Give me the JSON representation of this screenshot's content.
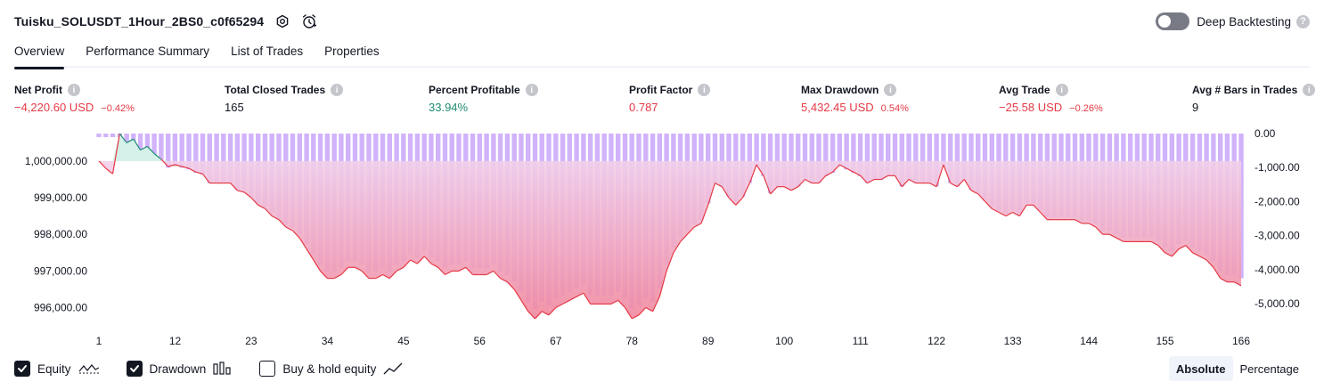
{
  "header": {
    "strategy_name": "Tuisku_SOLUSDT_1Hour_2BS0_c0f65294",
    "deep_backtesting_label": "Deep Backtesting"
  },
  "tabs": [
    {
      "label": "Overview",
      "active": true
    },
    {
      "label": "Performance Summary",
      "active": false
    },
    {
      "label": "List of Trades",
      "active": false
    },
    {
      "label": "Properties",
      "active": false
    }
  ],
  "metrics": {
    "net_profit": {
      "label": "Net Profit",
      "value": "−4,220.60 USD",
      "pct": "−0.42%"
    },
    "total_closed_trades": {
      "label": "Total Closed Trades",
      "value": "165"
    },
    "percent_profitable": {
      "label": "Percent Profitable",
      "value": "33.94%"
    },
    "profit_factor": {
      "label": "Profit Factor",
      "value": "0.787"
    },
    "max_drawdown": {
      "label": "Max Drawdown",
      "value": "5,432.45 USD",
      "pct": "0.54%"
    },
    "avg_trade": {
      "label": "Avg Trade",
      "value": "−25.58 USD",
      "pct": "−0.26%"
    },
    "avg_bars": {
      "label": "Avg # Bars in Trades",
      "value": "9"
    }
  },
  "legend": {
    "equity_label": "Equity",
    "drawdown_label": "Drawdown",
    "buy_hold_label": "Buy & hold equity",
    "equity_checked": true,
    "drawdown_checked": true,
    "buy_hold_checked": false
  },
  "mode": {
    "absolute_label": "Absolute",
    "percentage_label": "Percentage",
    "active": "absolute"
  },
  "colors": {
    "loss_red": "#e53945",
    "profit_green": "#1e8c74",
    "drawdown_bar": "#d1b3fb",
    "area_top": "#f0d4f6",
    "area_bottom": "#f0879e",
    "profit_area": "#d4f0e8"
  },
  "chart_data": {
    "type": "area",
    "x_ticks": [
      "1",
      "12",
      "23",
      "34",
      "45",
      "56",
      "67",
      "78",
      "89",
      "100",
      "111",
      "122",
      "133",
      "144",
      "155",
      "166"
    ],
    "x_range": [
      1,
      166
    ],
    "left_ticks": [
      "1,000,000.00",
      "999,000.00",
      "998,000.00",
      "997,000.00",
      "996,000.00"
    ],
    "left_tick_values": [
      1000000,
      999000,
      998000,
      997000,
      996000
    ],
    "left_range": [
      995600,
      1000750
    ],
    "right_ticks": [
      "0.00",
      "-1,000.00",
      "-2,000.00",
      "-3,000.00",
      "-4,000.00",
      "-5,000.00"
    ],
    "right_tick_values": [
      0,
      -1000,
      -2000,
      -3000,
      -4000,
      -5000
    ],
    "right_range": [
      -5550,
      0
    ],
    "series": [
      {
        "name": "Equity",
        "values": [
          1000000,
          999800,
          999650,
          1000750,
          1000500,
          1000600,
          1000300,
          1000400,
          1000200,
          1000050,
          999850,
          999900,
          999850,
          999800,
          999700,
          999650,
          999400,
          999400,
          999400,
          999400,
          999200,
          999150,
          999000,
          998800,
          998700,
          998500,
          998400,
          998200,
          998100,
          997900,
          997600,
          997300,
          997000,
          996800,
          996800,
          996900,
          997100,
          997100,
          997000,
          996800,
          996800,
          996900,
          996800,
          997000,
          997100,
          997300,
          997200,
          997400,
          997200,
          997100,
          996900,
          997000,
          997000,
          997100,
          996900,
          996900,
          996900,
          997000,
          996800,
          996700,
          996500,
          996200,
          995900,
          995700,
          995900,
          995800,
          996000,
          996100,
          996200,
          996300,
          996400,
          996100,
          996100,
          996100,
          996100,
          996200,
          996000,
          995700,
          995800,
          996000,
          995900,
          996300,
          997000,
          997500,
          997800,
          998000,
          998200,
          998300,
          998800,
          999400,
          999300,
          999000,
          998800,
          999000,
          999400,
          999900,
          999600,
          999100,
          999300,
          999300,
          999200,
          999300,
          999500,
          999400,
          999400,
          999600,
          999700,
          999900,
          999800,
          999700,
          999600,
          999400,
          999500,
          999500,
          999600,
          999600,
          999300,
          999500,
          999400,
          999400,
          999400,
          999300,
          999900,
          999400,
          999300,
          999500,
          999200,
          999100,
          998900,
          998700,
          998600,
          998500,
          998600,
          998500,
          998800,
          998800,
          998600,
          998400,
          998400,
          998400,
          998400,
          998400,
          998300,
          998300,
          998200,
          998000,
          998000,
          997900,
          997800,
          997800,
          997800,
          997800,
          997800,
          997700,
          997500,
          997400,
          997600,
          997700,
          997500,
          997400,
          997300,
          997100,
          996800,
          996700,
          996700,
          996600
        ]
      },
      {
        "name": "Drawdown",
        "values": [
          0,
          0,
          0,
          0,
          -250,
          -150,
          -450,
          -350,
          -550,
          -700,
          -900,
          -850,
          -900,
          -950,
          -1050,
          -1100,
          -1350,
          -1350,
          -1350,
          -1350,
          -1550,
          -1600,
          -1750,
          -1950,
          -2050,
          -2250,
          -2350,
          -2550,
          -2650,
          -2850,
          -3150,
          -3450,
          -3750,
          -3950,
          -3950,
          -3850,
          -3650,
          -3650,
          -3750,
          -3950,
          -3950,
          -3850,
          -3950,
          -3750,
          -3650,
          -3450,
          -3550,
          -3350,
          -3550,
          -3650,
          -3850,
          -3750,
          -3750,
          -3650,
          -3850,
          -3850,
          -3850,
          -3750,
          -3950,
          -4050,
          -4250,
          -4550,
          -4850,
          -5050,
          -4850,
          -4950,
          -4750,
          -4650,
          -4550,
          -4450,
          -4350,
          -4650,
          -4650,
          -4650,
          -4650,
          -4550,
          -4750,
          -5050,
          -4950,
          -4750,
          -4850,
          -4450,
          -3750,
          -3250,
          -2950,
          -2750,
          -2550,
          -2450,
          -1950,
          -1350,
          -1450,
          -1750,
          -1950,
          -1750,
          -1350,
          -850,
          -1150,
          -1650,
          -1450,
          -1450,
          -1550,
          -1450,
          -1250,
          -1350,
          -1350,
          -1150,
          -1050,
          -850,
          -950,
          -1050,
          -1150,
          -1350,
          -1250,
          -1250,
          -1150,
          -1150,
          -1450,
          -1250,
          -1350,
          -1350,
          -1350,
          -1450,
          -850,
          -1350,
          -1450,
          -1250,
          -1550,
          -1650,
          -1850,
          -2050,
          -2150,
          -2250,
          -2150,
          -2250,
          -1950,
          -1950,
          -2150,
          -2350,
          -2350,
          -2350,
          -2350,
          -2350,
          -2450,
          -2450,
          -2550,
          -2750,
          -2750,
          -2850,
          -2950,
          -2950,
          -2950,
          -2950,
          -2950,
          -3050,
          -3250,
          -3350,
          -3150,
          -3050,
          -3250,
          -3350,
          -3450,
          -3650,
          -3950,
          -4050,
          -4050,
          -4150
        ]
      }
    ],
    "grid": false
  }
}
